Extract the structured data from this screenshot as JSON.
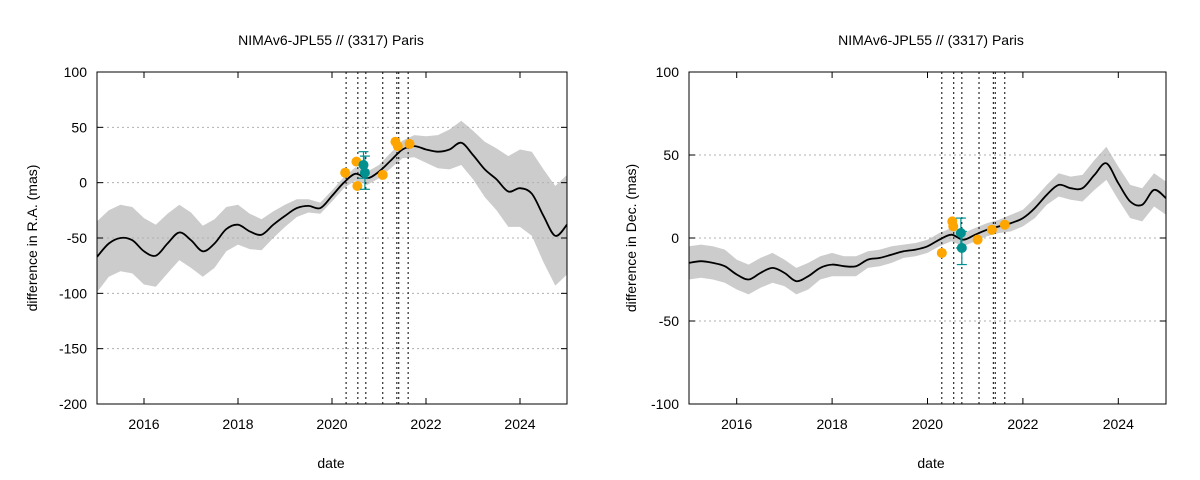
{
  "chart_data": [
    {
      "type": "line",
      "title": "NIMAv6-JPL55 // (3317) Paris",
      "xlabel": "date",
      "ylabel": "difference in R.A. (mas)",
      "xlim": [
        2015.0,
        2025.0
      ],
      "ylim": [
        -200,
        100
      ],
      "x_ticks": [
        "2016",
        "2018",
        "2020",
        "2022",
        "2024"
      ],
      "y_ticks": [
        "100",
        "50",
        "0",
        "-50",
        "-100",
        "-150",
        "-200"
      ],
      "grid": "horizontal dotted",
      "model_series": {
        "x": [
          2015.0,
          2015.25,
          2015.5,
          2015.75,
          2016.0,
          2016.25,
          2016.5,
          2016.75,
          2017.0,
          2017.25,
          2017.5,
          2017.75,
          2018.0,
          2018.25,
          2018.5,
          2018.75,
          2019.0,
          2019.25,
          2019.5,
          2019.75,
          2020.0,
          2020.25,
          2020.5,
          2020.75,
          2021.0,
          2021.25,
          2021.5,
          2021.75,
          2022.0,
          2022.25,
          2022.5,
          2022.75,
          2023.0,
          2023.25,
          2023.5,
          2023.75,
          2024.0,
          2024.25,
          2024.5,
          2024.75,
          2025.0
        ],
        "y": [
          -67,
          -55,
          -50,
          -52,
          -62,
          -66,
          -55,
          -45,
          -52,
          -62,
          -55,
          -42,
          -38,
          -44,
          -47,
          -38,
          -30,
          -23,
          -21,
          -23,
          -12,
          0,
          8,
          4,
          10,
          20,
          30,
          33,
          30,
          28,
          30,
          36,
          25,
          12,
          3,
          -8,
          -5,
          -10,
          -30,
          -48,
          -38
        ],
        "band": [
          32,
          30,
          30,
          30,
          30,
          28,
          27,
          25,
          25,
          23,
          22,
          20,
          18,
          16,
          14,
          12,
          10,
          8,
          6,
          5,
          5,
          5,
          6,
          6,
          6,
          7,
          8,
          10,
          12,
          15,
          18,
          20,
          22,
          25,
          28,
          32,
          35,
          38,
          42,
          45,
          45
        ],
        "color": "#000000",
        "band_color": "#cccccc"
      },
      "observations": {
        "color": "#ffa500",
        "points": [
          [
            2020.28,
            9
          ],
          [
            2020.52,
            19
          ],
          [
            2020.54,
            -3
          ],
          [
            2021.08,
            7
          ],
          [
            2021.35,
            37
          ],
          [
            2021.4,
            33
          ],
          [
            2021.65,
            35
          ]
        ]
      },
      "gaia_points": {
        "color": "#009090",
        "points": [
          [
            2020.67,
            16,
            12
          ],
          [
            2020.7,
            9,
            15
          ]
        ]
      },
      "vertical_lines": [
        2020.3,
        2020.55,
        2020.72,
        2021.08,
        2021.38,
        2021.42,
        2021.62
      ]
    },
    {
      "type": "line",
      "title": "NIMAv6-JPL55 // (3317) Paris",
      "xlabel": "date",
      "ylabel": "difference in Dec. (mas)",
      "xlim": [
        2015.0,
        2025.0
      ],
      "ylim": [
        -100,
        100
      ],
      "x_ticks": [
        "2016",
        "2018",
        "2020",
        "2022",
        "2024"
      ],
      "y_ticks": [
        "100",
        "50",
        "0",
        "-50",
        "-100"
      ],
      "grid": "horizontal dotted",
      "model_series": {
        "x": [
          2015.0,
          2015.25,
          2015.5,
          2015.75,
          2016.0,
          2016.25,
          2016.5,
          2016.75,
          2017.0,
          2017.25,
          2017.5,
          2017.75,
          2018.0,
          2018.25,
          2018.5,
          2018.75,
          2019.0,
          2019.25,
          2019.5,
          2019.75,
          2020.0,
          2020.25,
          2020.5,
          2020.75,
          2021.0,
          2021.25,
          2021.5,
          2021.75,
          2022.0,
          2022.25,
          2022.5,
          2022.75,
          2023.0,
          2023.25,
          2023.5,
          2023.75,
          2024.0,
          2024.25,
          2024.5,
          2024.75,
          2025.0
        ],
        "y": [
          -15,
          -14,
          -15,
          -17,
          -22,
          -25,
          -21,
          -18,
          -21,
          -26,
          -23,
          -18,
          -16,
          -17,
          -17,
          -13,
          -12,
          -10,
          -8,
          -7,
          -5,
          -1,
          2,
          -1,
          2,
          5,
          7,
          9,
          12,
          18,
          26,
          32,
          30,
          30,
          38,
          45,
          33,
          22,
          20,
          29,
          24
        ],
        "band": [
          10,
          10,
          10,
          10,
          9,
          9,
          9,
          9,
          8,
          8,
          8,
          7,
          7,
          6,
          6,
          5,
          5,
          5,
          4,
          4,
          4,
          4,
          4,
          4,
          4,
          4,
          4,
          5,
          5,
          6,
          6,
          7,
          7,
          8,
          9,
          10,
          10,
          10,
          10,
          10,
          10
        ],
        "color": "#000000",
        "band_color": "#cccccc"
      },
      "observations": {
        "color": "#ffa500",
        "points": [
          [
            2020.3,
            -9
          ],
          [
            2020.52,
            10
          ],
          [
            2020.54,
            7
          ],
          [
            2021.05,
            -1
          ],
          [
            2021.35,
            5
          ],
          [
            2021.62,
            8
          ]
        ]
      },
      "gaia_points": {
        "color": "#009090",
        "points": [
          [
            2020.7,
            3,
            9
          ],
          [
            2020.72,
            -6,
            10
          ]
        ]
      },
      "vertical_lines": [
        2020.3,
        2020.55,
        2020.72,
        2021.08,
        2021.38,
        2021.42,
        2021.62
      ]
    }
  ]
}
